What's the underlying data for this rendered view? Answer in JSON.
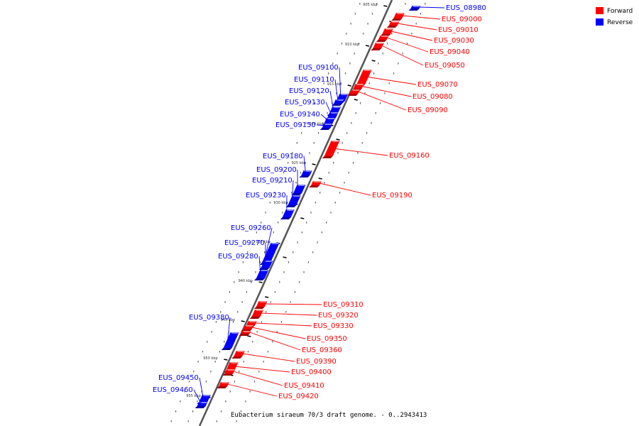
{
  "caption": "Eubacterium siraeum 70/3 draft genome. - 0..2943413",
  "legend": [
    {
      "label": "Forward",
      "color": "#ff0000"
    },
    {
      "label": "Reverse",
      "color": "#0000ff"
    }
  ],
  "colors": {
    "forward": "#ff0000",
    "reverse": "#0000ff",
    "backbone": "#555555"
  },
  "ticks": [
    "905 kbp",
    "910 kbp",
    "915 kbp",
    "920 kbp",
    "925 kbp",
    "930 kbp",
    "935 kbp",
    "940 kbp",
    "945 kbp",
    "950 kbp",
    "955 kbp"
  ],
  "genes": [
    {
      "name": "EUS_08980",
      "strand": "reverse"
    },
    {
      "name": "EUS_09000",
      "strand": "forward"
    },
    {
      "name": "EUS_09010",
      "strand": "forward"
    },
    {
      "name": "EUS_09030",
      "strand": "forward"
    },
    {
      "name": "EUS_09040",
      "strand": "forward"
    },
    {
      "name": "EUS_09050",
      "strand": "forward"
    },
    {
      "name": "EUS_09070",
      "strand": "forward"
    },
    {
      "name": "EUS_09080",
      "strand": "forward"
    },
    {
      "name": "EUS_09090",
      "strand": "forward"
    },
    {
      "name": "EUS_09100",
      "strand": "reverse"
    },
    {
      "name": "EUS_09110",
      "strand": "reverse"
    },
    {
      "name": "EUS_09120",
      "strand": "reverse"
    },
    {
      "name": "EUS_09130",
      "strand": "reverse"
    },
    {
      "name": "EUS_09140",
      "strand": "reverse"
    },
    {
      "name": "EUS_09150",
      "strand": "reverse"
    },
    {
      "name": "EUS_09160",
      "strand": "forward"
    },
    {
      "name": "EUS_09180",
      "strand": "reverse"
    },
    {
      "name": "EUS_09190",
      "strand": "forward"
    },
    {
      "name": "EUS_09200",
      "strand": "reverse"
    },
    {
      "name": "EUS_09210",
      "strand": "reverse"
    },
    {
      "name": "EUS_09230",
      "strand": "reverse"
    },
    {
      "name": "EUS_09260",
      "strand": "reverse"
    },
    {
      "name": "EUS_09270",
      "strand": "reverse"
    },
    {
      "name": "EUS_09280",
      "strand": "reverse"
    },
    {
      "name": "EUS_09310",
      "strand": "forward"
    },
    {
      "name": "EUS_09320",
      "strand": "forward"
    },
    {
      "name": "EUS_09330",
      "strand": "forward"
    },
    {
      "name": "EUS_09350",
      "strand": "forward"
    },
    {
      "name": "EUS_09360",
      "strand": "forward"
    },
    {
      "name": "EUS_09380",
      "strand": "reverse"
    },
    {
      "name": "EUS_09390",
      "strand": "forward"
    },
    {
      "name": "EUS_09400",
      "strand": "forward"
    },
    {
      "name": "EUS_09410",
      "strand": "forward"
    },
    {
      "name": "EUS_09420",
      "strand": "forward"
    },
    {
      "name": "EUS_09450",
      "strand": "reverse"
    },
    {
      "name": "EUS_09460",
      "strand": "reverse"
    }
  ]
}
